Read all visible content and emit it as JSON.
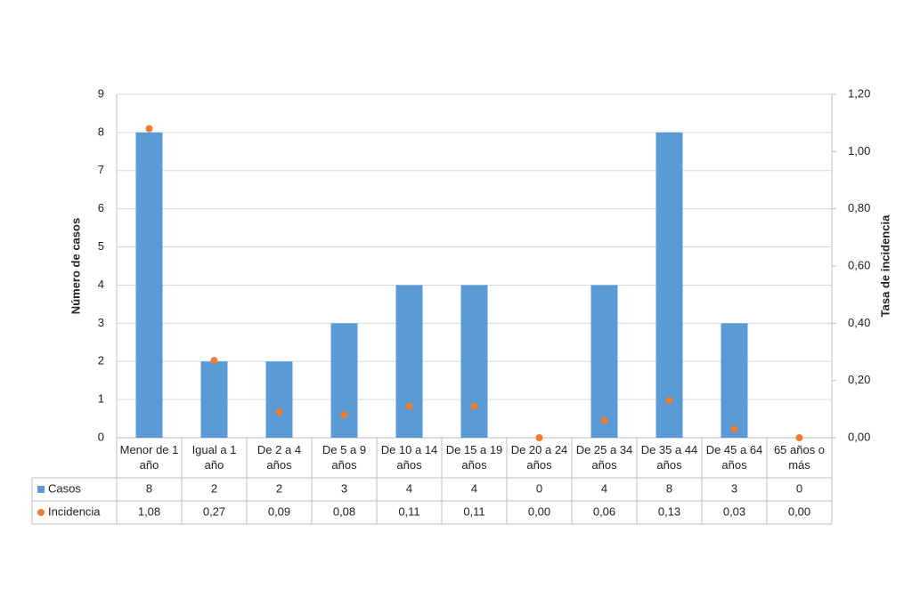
{
  "chart_data": {
    "type": "bar",
    "categories": [
      "Menor de 1 año",
      "Igual a 1 año",
      "De 2 a 4 años",
      "De 5 a 9 años",
      "De 10 a 14 años",
      "De 15 a 19 años",
      "De 20 a 24 años",
      "De 25 a 34 años",
      "De 35 a 44 años",
      "De 45 a 64 años",
      "65 años o más"
    ],
    "y_label": "Número de casos",
    "y2_label": "Tasa de incidencia",
    "series": [
      {
        "name": "Casos",
        "type": "bar",
        "color": "#5b9bd5",
        "values": [
          8,
          2,
          2,
          3,
          4,
          4,
          0,
          4,
          8,
          3,
          0
        ]
      },
      {
        "name": "Incidencia",
        "type": "scatter",
        "axis": "y2",
        "color": "#ed7d31",
        "values": [
          1.08,
          0.27,
          0.09,
          0.08,
          0.11,
          0.11,
          0.0,
          0.06,
          0.13,
          0.03,
          0.0
        ],
        "value_labels": [
          "1,08",
          "0,27",
          "0,09",
          "0,08",
          "0,11",
          "0,11",
          "0,00",
          "0,06",
          "0,13",
          "0,03",
          "0,00"
        ]
      }
    ],
    "ylim": [
      0,
      9
    ],
    "yticks": [
      0,
      1,
      2,
      3,
      4,
      5,
      6,
      7,
      8,
      9
    ],
    "y2lim": [
      0,
      1.2
    ],
    "y2ticks": [
      {
        "value": 0,
        "label": "0,00"
      },
      {
        "value": 0.2,
        "label": "0,20"
      },
      {
        "value": 0.4,
        "label": "0,40"
      },
      {
        "value": 0.6,
        "label": "0,60"
      },
      {
        "value": 0.8,
        "label": "0,80"
      },
      {
        "value": 1.0,
        "label": "1,00"
      },
      {
        "value": 1.2,
        "label": "1,20"
      }
    ],
    "grid": true
  }
}
